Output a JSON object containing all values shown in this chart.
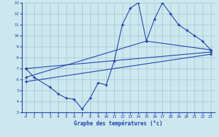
{
  "xlabel": "Graphe des températures (°c)",
  "xlim": [
    -0.5,
    23.5
  ],
  "ylim": [
    3,
    13
  ],
  "xticks": [
    0,
    1,
    2,
    3,
    4,
    5,
    6,
    7,
    8,
    9,
    10,
    11,
    12,
    13,
    14,
    15,
    16,
    17,
    18,
    19,
    20,
    21,
    22,
    23
  ],
  "yticks": [
    3,
    4,
    5,
    6,
    7,
    8,
    9,
    10,
    11,
    12,
    13
  ],
  "bg_color": "#cce8ee",
  "line_color": "#2040b0",
  "grid_color": "#a0c4cc",
  "line1_x": [
    0,
    1,
    3,
    4,
    5,
    6,
    7,
    8,
    9,
    10,
    11,
    12,
    13,
    14,
    15,
    16,
    17,
    18,
    19,
    20,
    21,
    22,
    23
  ],
  "line1_y": [
    7.0,
    6.2,
    5.3,
    4.7,
    4.3,
    4.2,
    3.3,
    4.3,
    5.7,
    5.5,
    7.7,
    11.0,
    12.5,
    13.0,
    9.5,
    11.5,
    13.0,
    12.0,
    11.0,
    10.5,
    10.0,
    9.5,
    8.7
  ],
  "line2_x": [
    0,
    23
  ],
  "line2_y": [
    7.0,
    8.5
  ],
  "line3_x": [
    0,
    15,
    23
  ],
  "line3_y": [
    6.2,
    9.5,
    8.7
  ],
  "line4_x": [
    0,
    23
  ],
  "line4_y": [
    5.8,
    8.3
  ]
}
